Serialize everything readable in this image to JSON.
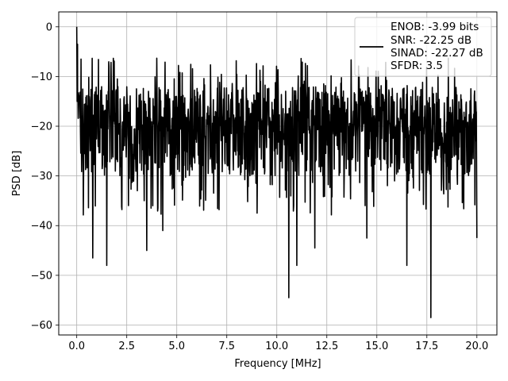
{
  "chart_data": {
    "type": "line",
    "title": "",
    "xlabel": "Frequency [MHz]",
    "ylabel": "PSD [dB]",
    "xlim": [
      -0.9,
      21.0
    ],
    "ylim": [
      -62,
      3
    ],
    "xticks": [
      0.0,
      2.5,
      5.0,
      7.5,
      10.0,
      12.5,
      15.0,
      17.5,
      20.0
    ],
    "xtick_labels": [
      "0.0",
      "2.5",
      "5.0",
      "7.5",
      "10.0",
      "12.5",
      "15.0",
      "17.5",
      "20.0"
    ],
    "yticks": [
      0,
      -10,
      -20,
      -30,
      -40,
      -50,
      -60
    ],
    "ytick_labels": [
      "0",
      "−10",
      "−20",
      "−30",
      "−40",
      "−50",
      "−60"
    ],
    "grid": true,
    "legend_position": "top-right",
    "series": [
      {
        "color": "#000000",
        "style": "noise-like power spectral density trace, 0 to 20 MHz, peak 0 dB at 0 MHz, floor mostly between -30 and -12 dB",
        "x_range": [
          0.0,
          20.0
        ],
        "peak": {
          "x": 0.0,
          "y": 0
        },
        "dips": [
          {
            "x": 0.8,
            "y": -46.5
          },
          {
            "x": 1.5,
            "y": -48.0
          },
          {
            "x": 3.5,
            "y": -45.0
          },
          {
            "x": 4.3,
            "y": -41.0
          },
          {
            "x": 10.6,
            "y": -54.5
          },
          {
            "x": 11.0,
            "y": -48.0
          },
          {
            "x": 11.9,
            "y": -44.5
          },
          {
            "x": 14.5,
            "y": -42.5
          },
          {
            "x": 16.5,
            "y": -48.0
          },
          {
            "x": 17.7,
            "y": -58.5
          },
          {
            "x": 20.0,
            "y": -42.5
          }
        ]
      }
    ],
    "legend": {
      "lines": [
        "ENOB: -3.99 bits",
        "SNR: -22.25 dB",
        "SINAD: -22.27 dB",
        "SFDR: 3.5"
      ]
    }
  },
  "colors": {
    "line": "#000000",
    "grid": "#b0b0b0",
    "axes": "#000000",
    "legend_border": "#cccccc"
  }
}
